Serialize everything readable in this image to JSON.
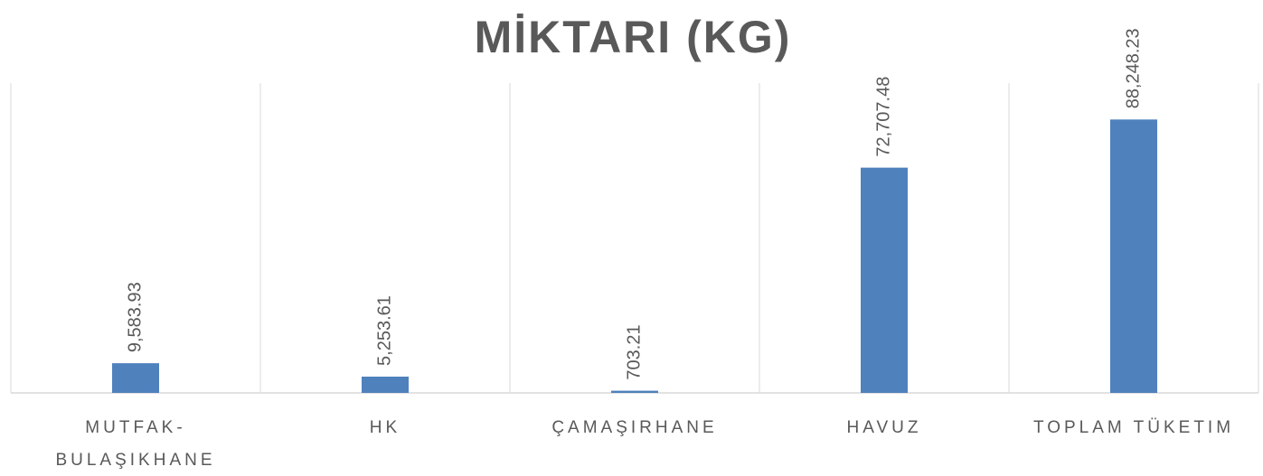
{
  "chart_data": {
    "type": "bar",
    "title": "MİKTARI (KG)",
    "categories": [
      "MUTFAK-BULAŞIKHANE",
      "HK",
      "ÇAMAŞIRHANE",
      "HAVUZ",
      "TOPLAM TÜKETIM"
    ],
    "values": [
      9583.93,
      5253.61,
      703.21,
      72707.48,
      88248.23
    ],
    "value_labels": [
      "9,583.93",
      "5,253.61",
      "703.21",
      "72,707.48",
      "88,248.23"
    ],
    "color": "#4f81bd",
    "ylim": [
      0,
      100000
    ]
  }
}
